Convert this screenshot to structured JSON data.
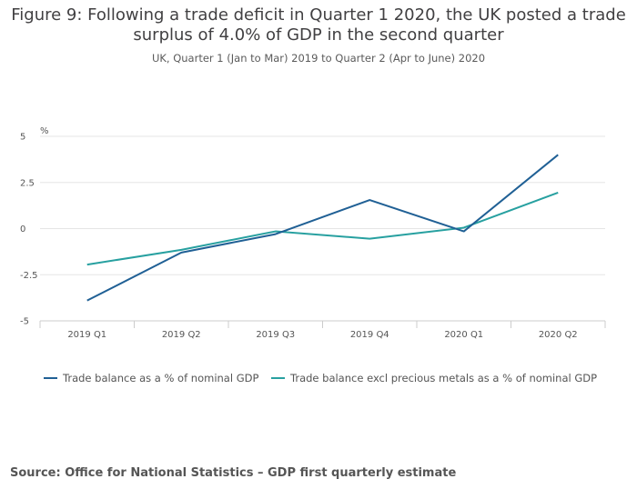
{
  "title": "Figure 9: Following a trade deficit in Quarter 1 2020, the UK posted a trade surplus of 4.0% of GDP in the second quarter",
  "subtitle": "UK, Quarter 1 (Jan to Mar) 2019 to Quarter 2 (Apr to June) 2020",
  "source": "Source: Office for National Statistics – GDP first quarterly estimate",
  "colors": {
    "series1": "#206095",
    "series2": "#27a0a0",
    "grid": "#e5e5e5",
    "axis": "#cccccc"
  },
  "chart_data": {
    "type": "line",
    "title": "Figure 9: Following a trade deficit in Quarter 1 2020, the UK posted a trade surplus of 4.0% of GDP in the second quarter",
    "ylabel": "%",
    "xlabel": "",
    "categories": [
      "2019 Q1",
      "2019 Q2",
      "2019 Q3",
      "2019 Q4",
      "2020 Q1",
      "2020 Q2"
    ],
    "yticks": [
      "5",
      "2.5",
      "0",
      "-2.5",
      "-5"
    ],
    "ylim": [
      -5,
      5
    ],
    "grid": true,
    "legend_position": "bottom",
    "series": [
      {
        "name": "Trade balance as a % of nominal GDP",
        "color": "#206095",
        "values": [
          -3.9,
          -1.3,
          -0.3,
          1.55,
          -0.15,
          4.0
        ]
      },
      {
        "name": "Trade balance excl precious metals as a % of nominal GDP",
        "color": "#27a0a0",
        "values": [
          -1.95,
          -1.15,
          -0.15,
          -0.55,
          0.05,
          1.95
        ]
      }
    ]
  }
}
